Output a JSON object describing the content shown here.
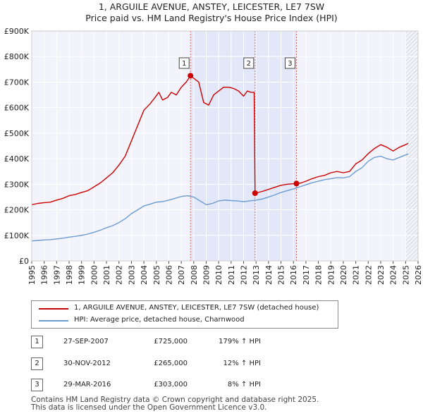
{
  "chart_data": {
    "type": "line",
    "title": "1, ARGUILE AVENUE, ANSTEY, LEICESTER, LE7 7SW",
    "subtitle": "Price paid vs. HM Land Registry's House Price Index (HPI)",
    "xlim": [
      1995,
      2026
    ],
    "ylim": [
      0,
      900000
    ],
    "x_ticks": [
      "1995",
      "1996",
      "1997",
      "1998",
      "1999",
      "2000",
      "2001",
      "2002",
      "2003",
      "2004",
      "2005",
      "2006",
      "2007",
      "2008",
      "2009",
      "2010",
      "2011",
      "2012",
      "2013",
      "2014",
      "2015",
      "2016",
      "2017",
      "2018",
      "2019",
      "2020",
      "2021",
      "2022",
      "2023",
      "2024",
      "2025",
      "2026"
    ],
    "y_ticks": [
      {
        "value": 0,
        "label": "£0"
      },
      {
        "value": 100000,
        "label": "£100K"
      },
      {
        "value": 200000,
        "label": "£200K"
      },
      {
        "value": 300000,
        "label": "£300K"
      },
      {
        "value": 400000,
        "label": "£400K"
      },
      {
        "value": 500000,
        "label": "£500K"
      },
      {
        "value": 600000,
        "label": "£600K"
      },
      {
        "value": 700000,
        "label": "£700K"
      },
      {
        "value": 800000,
        "label": "£800K"
      },
      {
        "value": 900000,
        "label": "£900K"
      }
    ],
    "shaded_span": [
      2007.74,
      2016.24
    ],
    "hatched_from": 2025.0,
    "series": [
      {
        "name": "1, ARGUILE AVENUE, ANSTEY, LEICESTER, LE7 7SW (detached house)",
        "color": "#cc0000",
        "x": [
          1995.0,
          1995.5,
          1996.0,
          1996.5,
          1997.0,
          1997.5,
          1998.0,
          1998.5,
          1999.0,
          1999.5,
          2000.0,
          2000.5,
          2001.0,
          2001.5,
          2002.0,
          2002.5,
          2003.0,
          2003.5,
          2004.0,
          2004.5,
          2004.9,
          2005.2,
          2005.5,
          2005.9,
          2006.2,
          2006.6,
          2007.0,
          2007.4,
          2007.74,
          2008.0,
          2008.4,
          2008.8,
          2009.2,
          2009.6,
          2010.0,
          2010.4,
          2010.8,
          2011.2,
          2011.6,
          2012.0,
          2012.3,
          2012.6,
          2012.85,
          2012.92,
          2013.5,
          2014.0,
          2014.5,
          2015.0,
          2015.5,
          2016.0,
          2016.24,
          2016.6,
          2017.0,
          2017.5,
          2018.0,
          2018.5,
          2019.0,
          2019.5,
          2020.0,
          2020.5,
          2021.0,
          2021.5,
          2022.0,
          2022.5,
          2023.0,
          2023.5,
          2024.0,
          2024.5,
          2025.0,
          2025.2
        ],
        "values": [
          220000,
          225000,
          228000,
          230000,
          238000,
          245000,
          255000,
          260000,
          268000,
          275000,
          290000,
          305000,
          325000,
          345000,
          375000,
          410000,
          470000,
          530000,
          590000,
          615000,
          640000,
          660000,
          630000,
          640000,
          660000,
          650000,
          680000,
          700000,
          725000,
          715000,
          700000,
          620000,
          610000,
          650000,
          665000,
          680000,
          680000,
          675000,
          665000,
          645000,
          665000,
          660000,
          660000,
          265000,
          272000,
          280000,
          288000,
          296000,
          300000,
          302000,
          303000,
          305000,
          312000,
          322000,
          330000,
          335000,
          345000,
          350000,
          345000,
          350000,
          380000,
          395000,
          420000,
          440000,
          455000,
          445000,
          430000,
          445000,
          455000,
          460000
        ]
      },
      {
        "name": "HPI: Average price, detached house, Charnwood",
        "color": "#6a9bd1",
        "x": [
          1995.0,
          1995.5,
          1996.0,
          1996.5,
          1997.0,
          1997.5,
          1998.0,
          1998.5,
          1999.0,
          1999.5,
          2000.0,
          2000.5,
          2001.0,
          2001.5,
          2002.0,
          2002.5,
          2003.0,
          2003.5,
          2004.0,
          2004.5,
          2005.0,
          2005.5,
          2006.0,
          2006.5,
          2007.0,
          2007.5,
          2008.0,
          2008.5,
          2009.0,
          2009.5,
          2010.0,
          2010.5,
          2011.0,
          2011.5,
          2012.0,
          2012.5,
          2013.0,
          2013.5,
          2014.0,
          2014.5,
          2015.0,
          2015.5,
          2016.0,
          2016.5,
          2017.0,
          2017.5,
          2018.0,
          2018.5,
          2019.0,
          2019.5,
          2020.0,
          2020.5,
          2021.0,
          2021.5,
          2022.0,
          2022.5,
          2023.0,
          2023.5,
          2024.0,
          2024.5,
          2025.0,
          2025.2
        ],
        "values": [
          78000,
          80000,
          82000,
          83000,
          86000,
          89000,
          93000,
          96000,
          100000,
          105000,
          112000,
          120000,
          130000,
          138000,
          150000,
          165000,
          185000,
          200000,
          215000,
          222000,
          230000,
          232000,
          238000,
          245000,
          252000,
          255000,
          250000,
          235000,
          220000,
          225000,
          235000,
          238000,
          236000,
          235000,
          232000,
          235000,
          238000,
          242000,
          250000,
          258000,
          268000,
          275000,
          282000,
          290000,
          298000,
          306000,
          312000,
          318000,
          322000,
          326000,
          325000,
          330000,
          350000,
          365000,
          390000,
          405000,
          410000,
          400000,
          395000,
          405000,
          415000,
          420000
        ]
      }
    ],
    "annotations": [
      {
        "label": "1",
        "x": 2007.74,
        "value": 725000
      },
      {
        "label": "2",
        "x": 2012.92,
        "value": 265000
      },
      {
        "label": "3",
        "x": 2016.24,
        "value": 303000
      }
    ]
  },
  "legend": {
    "items": [
      {
        "label": "1, ARGUILE AVENUE, ANSTEY, LEICESTER, LE7 7SW (detached house)",
        "color": "#cc0000"
      },
      {
        "label": "HPI: Average price, detached house, Charnwood",
        "color": "#6a9bd1"
      }
    ]
  },
  "transactions": [
    {
      "num": "1",
      "date": "27-SEP-2007",
      "price": "£725,000",
      "hpi": "179% ↑ HPI"
    },
    {
      "num": "2",
      "date": "30-NOV-2012",
      "price": "£265,000",
      "hpi": "12% ↑ HPI"
    },
    {
      "num": "3",
      "date": "29-MAR-2016",
      "price": "£303,000",
      "hpi": "8% ↑ HPI"
    }
  ],
  "footer": {
    "line1": "Contains HM Land Registry data © Crown copyright and database right 2025.",
    "line2": "This data is licensed under the Open Government Licence v3.0."
  }
}
